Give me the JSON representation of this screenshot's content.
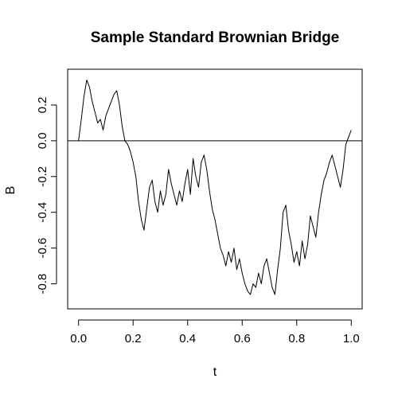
{
  "chart_data": {
    "type": "line",
    "title": "Sample Standard Brownian Bridge",
    "xlabel": "t",
    "ylabel": "B",
    "xlim": [
      -0.04,
      1.04
    ],
    "ylim": [
      -0.94,
      0.4
    ],
    "x_ticks": [
      "0.0",
      "0.2",
      "0.4",
      "0.6",
      "0.8",
      "1.0"
    ],
    "y_ticks": [
      "-0.8",
      "-0.6",
      "-0.4",
      "-0.2",
      "0.0",
      "0.2"
    ],
    "reference_line": {
      "y": 0
    },
    "grid": false,
    "legend": "none",
    "line_color": "#000000",
    "series": [
      {
        "x": [
          0.0,
          0.01,
          0.02,
          0.03,
          0.04,
          0.05,
          0.06,
          0.07,
          0.08,
          0.09,
          0.1,
          0.11,
          0.12,
          0.13,
          0.14,
          0.15,
          0.16,
          0.17,
          0.18,
          0.19,
          0.2,
          0.21,
          0.22,
          0.23,
          0.24,
          0.25,
          0.26,
          0.27,
          0.28,
          0.29,
          0.3,
          0.31,
          0.32,
          0.33,
          0.34,
          0.35,
          0.36,
          0.37,
          0.38,
          0.39,
          0.4,
          0.41,
          0.42,
          0.43,
          0.44,
          0.45,
          0.46,
          0.47,
          0.48,
          0.49,
          0.5,
          0.51,
          0.52,
          0.53,
          0.54,
          0.55,
          0.56,
          0.57,
          0.58,
          0.59,
          0.6,
          0.61,
          0.62,
          0.63,
          0.64,
          0.65,
          0.66,
          0.67,
          0.68,
          0.69,
          0.7,
          0.71,
          0.72,
          0.73,
          0.74,
          0.75,
          0.76,
          0.77,
          0.78,
          0.79,
          0.8,
          0.81,
          0.82,
          0.83,
          0.84,
          0.85,
          0.86,
          0.87,
          0.88,
          0.89,
          0.9,
          0.91,
          0.92,
          0.93,
          0.94,
          0.95,
          0.96,
          0.97,
          0.98,
          0.99,
          1.0
        ],
        "y": [
          0.0,
          0.12,
          0.25,
          0.34,
          0.3,
          0.22,
          0.16,
          0.1,
          0.12,
          0.06,
          0.14,
          0.18,
          0.22,
          0.26,
          0.28,
          0.2,
          0.08,
          0.0,
          -0.02,
          -0.06,
          -0.12,
          -0.2,
          -0.34,
          -0.44,
          -0.5,
          -0.38,
          -0.26,
          -0.22,
          -0.34,
          -0.4,
          -0.28,
          -0.36,
          -0.3,
          -0.16,
          -0.24,
          -0.3,
          -0.36,
          -0.28,
          -0.34,
          -0.24,
          -0.16,
          -0.3,
          -0.1,
          -0.2,
          -0.26,
          -0.12,
          -0.08,
          -0.16,
          -0.28,
          -0.38,
          -0.44,
          -0.52,
          -0.6,
          -0.64,
          -0.7,
          -0.62,
          -0.68,
          -0.6,
          -0.72,
          -0.66,
          -0.74,
          -0.8,
          -0.84,
          -0.86,
          -0.8,
          -0.82,
          -0.74,
          -0.8,
          -0.7,
          -0.66,
          -0.74,
          -0.82,
          -0.86,
          -0.72,
          -0.6,
          -0.4,
          -0.36,
          -0.5,
          -0.58,
          -0.68,
          -0.62,
          -0.7,
          -0.56,
          -0.66,
          -0.58,
          -0.42,
          -0.48,
          -0.54,
          -0.4,
          -0.3,
          -0.22,
          -0.18,
          -0.12,
          -0.08,
          -0.14,
          -0.2,
          -0.26,
          -0.16,
          -0.02,
          0.02,
          0.06
        ]
      }
    ]
  }
}
